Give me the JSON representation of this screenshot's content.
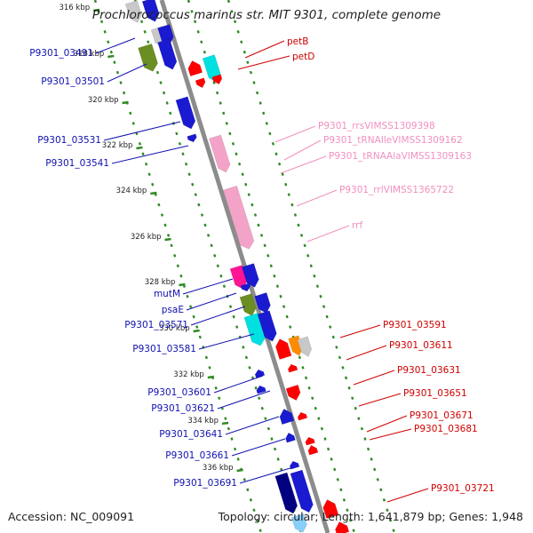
{
  "title": "Prochlorococcus marinus str. MIT 9301, complete genome",
  "footer": {
    "accession": "Accession: NC_009091",
    "summary": "Topology: circular; Length: 1,641,879 bp; Genes: 1,948"
  },
  "ticks": [
    "316 kbp",
    "318 kbp",
    "320 kbp",
    "322 kbp",
    "324 kbp",
    "326 kbp",
    "328 kbp",
    "330 kbp",
    "332 kbp",
    "334 kbp",
    "336 kbp"
  ],
  "colors": {
    "backbone": "#8c8c8c",
    "tick": "#2e8b22",
    "label_reverse": "#1010b0",
    "label_forward": "#d00000",
    "label_rna": "#f090c0"
  },
  "labels_reverse": [
    "P9301_03491",
    "P9301_03501",
    "P9301_03531",
    "P9301_03541",
    "mutM",
    "psaE",
    "P9301_03571",
    "P9301_03581",
    "P9301_03601",
    "P9301_03621",
    "P9301_03641",
    "P9301_03661",
    "P9301_03691"
  ],
  "labels_forward": [
    "petB",
    "petD",
    "P9301_03591",
    "P9301_03611",
    "P9301_03631",
    "P9301_03651",
    "P9301_03671",
    "P9301_03681",
    "P9301_03721"
  ],
  "labels_rna": [
    "P9301_rrsVIMSS1309398",
    "P9301_tRNAIleVIMSS1309162",
    "P9301_tRNAAlaVIMSS1309163",
    "P9301_rrlVIMSS1365722",
    "rrf"
  ]
}
